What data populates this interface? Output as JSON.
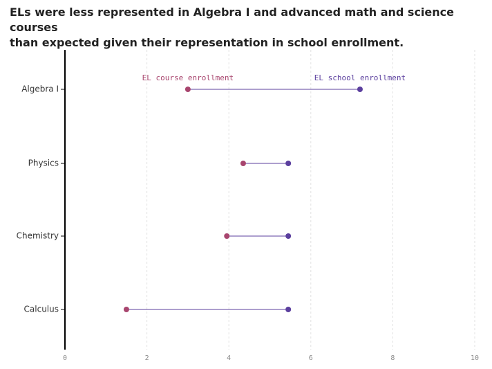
{
  "title_lines": [
    "ELs were less represented in Algebra I and advanced math and science courses",
    "than expected given their representation in school enrollment."
  ],
  "colors": {
    "course": "#a8456e",
    "school": "#5b3f9e",
    "connector": "#5b3f9e",
    "grid": "#e2e2e2",
    "axis": "#000000"
  },
  "chart_data": {
    "type": "dumbbell",
    "title": "ELs were less represented in Algebra I and advanced math and science courses than expected given their representation in school enrollment.",
    "categories": [
      "Algebra I",
      "Physics",
      "Chemistry",
      "Calculus"
    ],
    "series": [
      {
        "name": "EL course enrollment",
        "values": [
          3.0,
          4.35,
          3.95,
          1.5
        ]
      },
      {
        "name": "EL school enrollment",
        "values": [
          7.2,
          5.45,
          5.45,
          5.45
        ]
      }
    ],
    "xlim": [
      0,
      10
    ],
    "xticks": [
      0,
      2,
      4,
      6,
      8,
      10
    ],
    "grid": "vertical dashed",
    "annotations": [
      {
        "text": "EL course enrollment",
        "series": 0,
        "category": "Algebra I",
        "position": "above"
      },
      {
        "text": "EL school enrollment",
        "series": 1,
        "category": "Algebra I",
        "position": "above"
      }
    ]
  }
}
